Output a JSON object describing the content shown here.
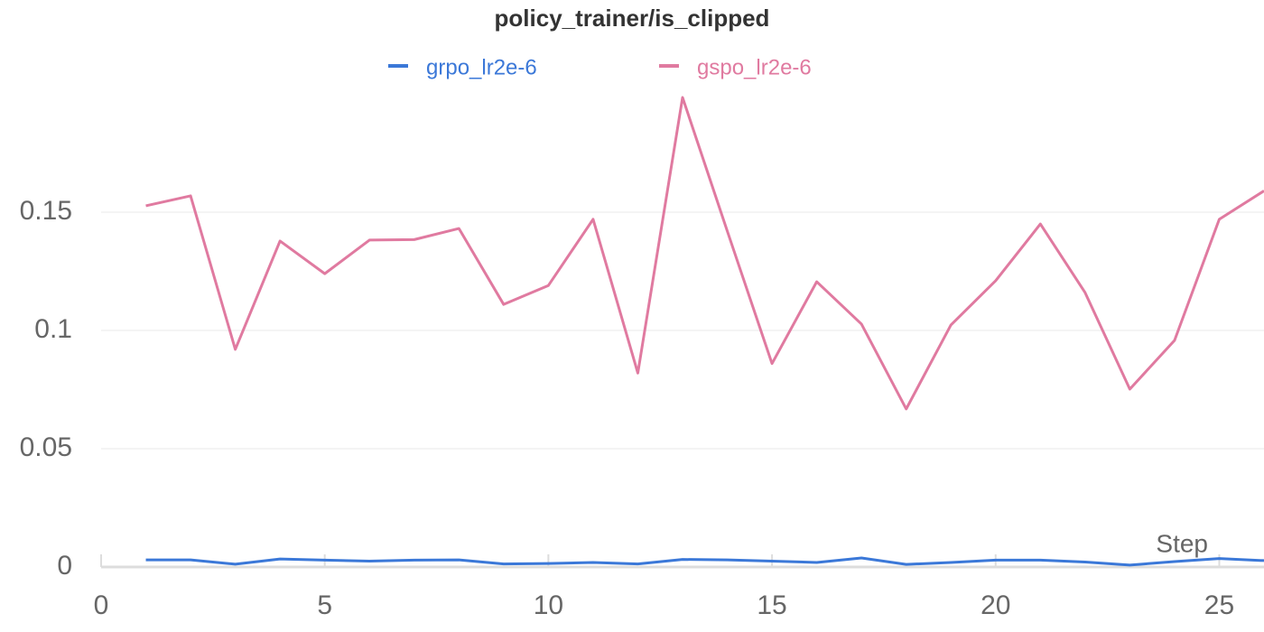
{
  "chart_data": {
    "type": "line",
    "title": "policy_trainer/is_clipped",
    "xlabel": "Step",
    "x": [
      1,
      2,
      3,
      4,
      5,
      6,
      7,
      8,
      9,
      10,
      11,
      12,
      13,
      14,
      15,
      16,
      17,
      18,
      19,
      20,
      21,
      22,
      23,
      24,
      25,
      26
    ],
    "series": [
      {
        "name": "grpo_lr2e-6",
        "color": "#3b78d8",
        "values": [
          0.003,
          0.003,
          0.0012,
          0.0034,
          0.0029,
          0.0025,
          0.0029,
          0.003,
          0.0013,
          0.0015,
          0.0019,
          0.0013,
          0.0032,
          0.003,
          0.0025,
          0.0019,
          0.0038,
          0.0011,
          0.0019,
          0.0029,
          0.0029,
          0.0021,
          0.0008,
          0.0023,
          0.0036,
          0.0027
        ]
      },
      {
        "name": "gspo_lr2e-6",
        "color": "#e07aa0",
        "values": [
          0.1527,
          0.1569,
          0.092,
          0.1378,
          0.124,
          0.1382,
          0.1384,
          0.1431,
          0.111,
          0.119,
          0.147,
          0.082,
          0.1985,
          0.142,
          0.086,
          0.1206,
          0.1027,
          0.0668,
          0.1023,
          0.121,
          0.145,
          0.116,
          0.0752,
          0.0958,
          0.147,
          0.159
        ]
      }
    ],
    "xlim": [
      0,
      26
    ],
    "xticks": [
      0,
      5,
      10,
      15,
      20,
      25
    ],
    "ylim": [
      0,
      0.2
    ],
    "yticks": [
      0,
      0.05,
      0.1,
      0.15
    ],
    "grid": true
  }
}
